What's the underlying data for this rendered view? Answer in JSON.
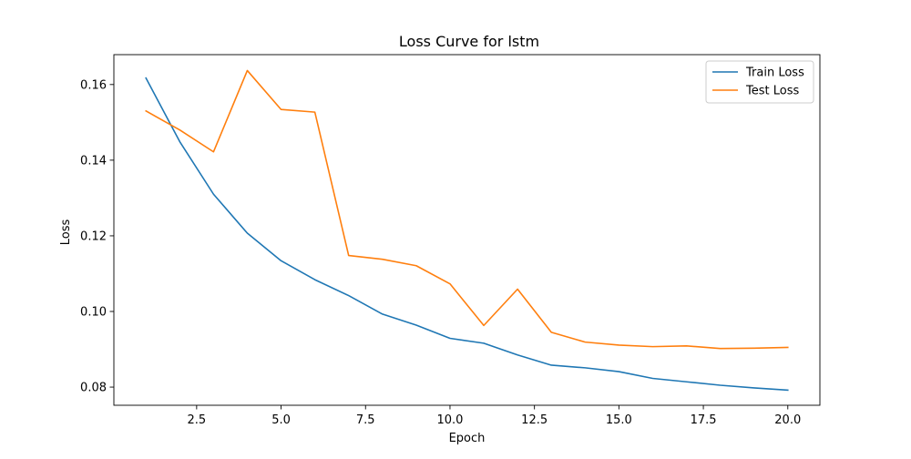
{
  "chart_data": {
    "type": "line",
    "title": "Loss Curve for lstm",
    "xlabel": "Epoch",
    "ylabel": "Loss",
    "xlim": [
      0.05,
      20.95
    ],
    "ylim": [
      0.0752,
      0.1679
    ],
    "xticks": [
      2.5,
      5.0,
      7.5,
      10.0,
      12.5,
      15.0,
      17.5,
      20.0
    ],
    "xtick_labels": [
      "2.5",
      "5.0",
      "7.5",
      "10.0",
      "12.5",
      "15.0",
      "17.5",
      "20.0"
    ],
    "yticks": [
      0.08,
      0.1,
      0.12,
      0.14,
      0.16
    ],
    "ytick_labels": [
      "0.08",
      "0.10",
      "0.12",
      "0.14",
      "0.16"
    ],
    "grid": false,
    "legend_position": "top-right",
    "x": [
      1,
      2,
      3,
      4,
      5,
      6,
      7,
      8,
      9,
      10,
      11,
      12,
      13,
      14,
      15,
      16,
      17,
      18,
      19,
      20
    ],
    "series": [
      {
        "name": "Train Loss",
        "color": "#1f77b4",
        "values": [
          0.1617,
          0.1449,
          0.131,
          0.1207,
          0.1134,
          0.1084,
          0.1042,
          0.0993,
          0.0964,
          0.0929,
          0.0916,
          0.0885,
          0.0858,
          0.0851,
          0.0841,
          0.0823,
          0.0814,
          0.0805,
          0.0798,
          0.0792
        ]
      },
      {
        "name": "Test Loss",
        "color": "#ff7f0e",
        "values": [
          0.153,
          0.148,
          0.1422,
          0.1637,
          0.1534,
          0.1527,
          0.1148,
          0.1138,
          0.1121,
          0.1073,
          0.0963,
          0.1059,
          0.0945,
          0.0919,
          0.0911,
          0.0907,
          0.0909,
          0.0902,
          0.0903,
          0.0905
        ]
      }
    ]
  }
}
